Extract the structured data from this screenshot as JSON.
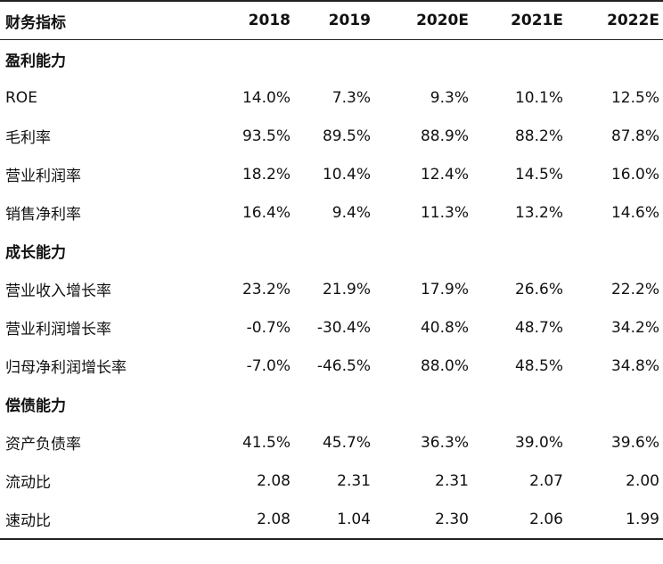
{
  "table": {
    "headers": [
      "财务指标",
      "2018",
      "2019",
      "2020E",
      "2021E",
      "2022E"
    ],
    "rows": [
      {
        "type": "section",
        "label": "盈利能力"
      },
      {
        "type": "data",
        "label": "ROE",
        "values": [
          "14.0%",
          "7.3%",
          "9.3%",
          "10.1%",
          "12.5%"
        ]
      },
      {
        "type": "data",
        "label": "毛利率",
        "values": [
          "93.5%",
          "89.5%",
          "88.9%",
          "88.2%",
          "87.8%"
        ]
      },
      {
        "type": "data",
        "label": "营业利润率",
        "values": [
          "18.2%",
          "10.4%",
          "12.4%",
          "14.5%",
          "16.0%"
        ]
      },
      {
        "type": "data",
        "label": "销售净利率",
        "values": [
          "16.4%",
          "9.4%",
          "11.3%",
          "13.2%",
          "14.6%"
        ]
      },
      {
        "type": "section",
        "label": "成长能力"
      },
      {
        "type": "data",
        "label": "营业收入增长率",
        "values": [
          "23.2%",
          "21.9%",
          "17.9%",
          "26.6%",
          "22.2%"
        ]
      },
      {
        "type": "data",
        "label": "营业利润增长率",
        "values": [
          "-0.7%",
          "-30.4%",
          "40.8%",
          "48.7%",
          "34.2%"
        ]
      },
      {
        "type": "data",
        "label": "归母净利润增长率",
        "values": [
          "-7.0%",
          "-46.5%",
          "88.0%",
          "48.5%",
          "34.8%"
        ]
      },
      {
        "type": "section",
        "label": "偿债能力"
      },
      {
        "type": "data",
        "label": "资产负债率",
        "values": [
          "41.5%",
          "45.7%",
          "36.3%",
          "39.0%",
          "39.6%"
        ]
      },
      {
        "type": "data",
        "label": "流动比",
        "values": [
          "2.08",
          "2.31",
          "2.31",
          "2.07",
          "2.00"
        ]
      },
      {
        "type": "data",
        "label": "速动比",
        "values": [
          "2.08",
          "1.04",
          "2.30",
          "2.06",
          "1.99"
        ]
      }
    ]
  }
}
